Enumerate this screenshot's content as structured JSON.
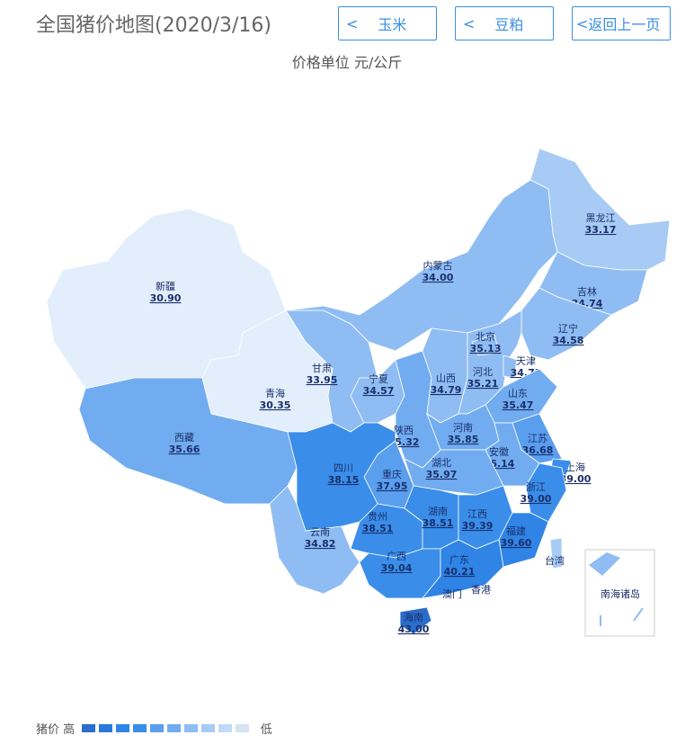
{
  "header": {
    "title": "全国猪价地图(2020/3/16)",
    "unit": "价格单位 元/公斤"
  },
  "buttons": [
    {
      "label": "玉米",
      "icon": "chevron-left"
    },
    {
      "label": "豆粕",
      "icon": "chevron-left"
    },
    {
      "label": "返回上一页",
      "icon": "chevron-left"
    }
  ],
  "legend": {
    "label": "猪价",
    "high": "高",
    "low": "低",
    "colors": [
      "#2a6dcb",
      "#2b78dc",
      "#2f84e6",
      "#3a8eea",
      "#5a9eee",
      "#72acf0",
      "#8fbdf3",
      "#a8cbf5",
      "#c0daf8",
      "#d5e3f3"
    ]
  },
  "provinces": [
    {
      "name": "新疆",
      "value": "30.90"
    },
    {
      "name": "西藏",
      "value": "35.66"
    },
    {
      "name": "青海",
      "value": "30.35"
    },
    {
      "name": "甘肃",
      "value": "33.95"
    },
    {
      "name": "内蒙古",
      "value": "34.00"
    },
    {
      "name": "黑龙江",
      "value": "33.17"
    },
    {
      "name": "吉林",
      "value": "34.74"
    },
    {
      "name": "辽宁",
      "value": "34.58"
    },
    {
      "name": "宁夏",
      "value": "34.57"
    },
    {
      "name": "陕西",
      "value": "35.32"
    },
    {
      "name": "山西",
      "value": "34.79"
    },
    {
      "name": "河北",
      "value": "35.21"
    },
    {
      "name": "北京",
      "value": "35.13"
    },
    {
      "name": "天津",
      "value": "34.72"
    },
    {
      "name": "山东",
      "value": "35.47"
    },
    {
      "name": "河南",
      "value": "35.85"
    },
    {
      "name": "江苏",
      "value": "36.68"
    },
    {
      "name": "安徽",
      "value": "36.14"
    },
    {
      "name": "上海",
      "value": "39.00"
    },
    {
      "name": "浙江",
      "value": "39.00"
    },
    {
      "name": "湖北",
      "value": "35.97"
    },
    {
      "name": "重庆",
      "value": "37.95"
    },
    {
      "name": "四川",
      "value": "38.15"
    },
    {
      "name": "云南",
      "value": "34.82"
    },
    {
      "name": "贵州",
      "value": "38.51"
    },
    {
      "name": "湖南",
      "value": "38.51"
    },
    {
      "name": "江西",
      "value": "39.39"
    },
    {
      "name": "福建",
      "value": "39.60"
    },
    {
      "name": "广西",
      "value": "39.04"
    },
    {
      "name": "广东",
      "value": "40.21"
    },
    {
      "name": "海南",
      "value": "43.00"
    },
    {
      "name": "台湾",
      "value": ""
    },
    {
      "name": "香港",
      "value": ""
    },
    {
      "name": "澳门",
      "value": ""
    }
  ],
  "inset": {
    "label": "南海诸岛"
  }
}
